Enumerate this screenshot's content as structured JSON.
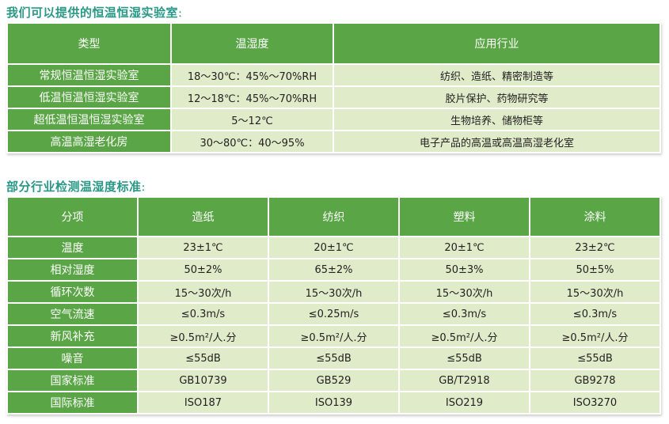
{
  "section1": {
    "title": "我们可以提供的恒温恒湿实验室",
    "colon": "：",
    "headers": [
      "类型",
      "温湿度",
      "应用行业"
    ],
    "rows": [
      [
        "常规恒温恒湿实验室",
        "18～30℃：45%～70%RH",
        "纺织、造纸、精密制造等"
      ],
      [
        "低温恒温恒湿实验室",
        "12～18℃：45%～70%RH",
        "胶片保护、药物研究等"
      ],
      [
        "超低温恒温恒湿实验室",
        "5～12℃",
        "生物培养、储物柜等"
      ],
      [
        "高温高湿老化房",
        "30～80℃：40～95%",
        "电子产品的高温或高温高湿老化室"
      ]
    ]
  },
  "section2": {
    "title": "部分行业检测温湿度标准",
    "colon": "：",
    "headers": [
      "分项",
      "造纸",
      "纺织",
      "塑料",
      "涂料"
    ],
    "rows": [
      [
        "温度",
        "23±1℃",
        "20±1℃",
        "20±1℃",
        "23±2℃"
      ],
      [
        "相对湿度",
        "50±2%",
        "65±2%",
        "50±3%",
        "50±5%"
      ],
      [
        "循环次数",
        "15～30次/h",
        "15～30次/h",
        "15～30次/h",
        "15～30次/h"
      ],
      [
        "空气流速",
        "≤0.3m/s",
        "≤0.25m/s",
        "≤0.3m/s",
        "≤0.3m/s"
      ],
      [
        "新风补充",
        "≥0.5m²/人.分",
        "≥0.5m²/人.分",
        "≥0.5m²/人.分",
        "≥0.5m²/人.分"
      ],
      [
        "噪音",
        "≤55dB",
        "≤55dB",
        "≤55dB",
        "≤55dB"
      ],
      [
        "国家标准",
        "GB10739",
        "GB529",
        "GB/T2918",
        "GB9278"
      ],
      [
        "国际标准",
        "ISO187",
        "ISO139",
        "ISO219",
        "ISO3270"
      ]
    ]
  }
}
